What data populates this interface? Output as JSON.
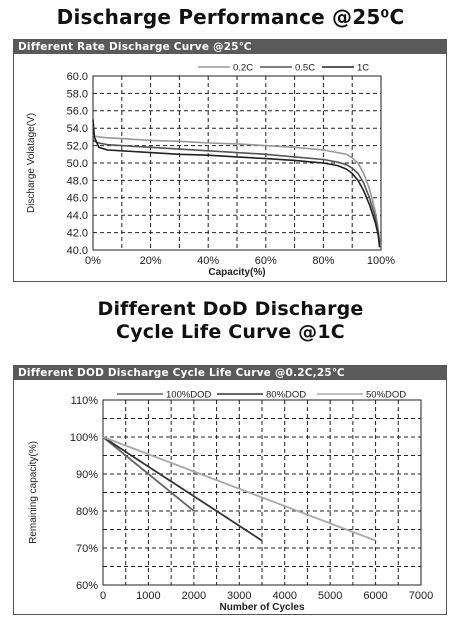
{
  "headings": {
    "top": "Discharge Performance @25⁰C",
    "bottom_line1": "Different DoD Discharge",
    "bottom_line2": "Cycle Life Curve @1C"
  },
  "chart_data": [
    {
      "type": "line",
      "title": "Different Rate Discharge Curve @25℃",
      "xlabel": "Capacity(%)",
      "ylabel": "Discharge Volatage(V)",
      "xlim": [
        0,
        100
      ],
      "ylim": [
        40,
        60
      ],
      "xticks": [
        "0%",
        "20%",
        "40%",
        "60%",
        "80%",
        "100%"
      ],
      "yticks": [
        "40.0",
        "42.0",
        "44.0",
        "46.0",
        "48.0",
        "50.0",
        "52.0",
        "54.0",
        "56.0",
        "58.0",
        "60.0"
      ],
      "grid": true,
      "legend_position": "top-right",
      "colors": {
        "line": "#3c3c3c"
      },
      "series": [
        {
          "name": "0.2C",
          "color": "#999999",
          "x": [
            0,
            0.5,
            2,
            5,
            10,
            20,
            30,
            40,
            50,
            60,
            70,
            80,
            85,
            88,
            90,
            92,
            94,
            96,
            98,
            99,
            99.8
          ],
          "y": [
            53.2,
            53.1,
            53.0,
            52.9,
            52.8,
            52.6,
            52.5,
            52.3,
            52.2,
            52.0,
            51.8,
            51.5,
            51.2,
            51.0,
            50.6,
            50.0,
            48.8,
            47.0,
            44.5,
            42.5,
            40.4
          ]
        },
        {
          "name": "0.5C",
          "color": "#555555",
          "x": [
            0,
            0.5,
            2,
            5,
            10,
            20,
            30,
            40,
            50,
            60,
            70,
            80,
            85,
            88,
            90,
            92,
            94,
            96,
            98,
            99,
            99.5
          ],
          "y": [
            52.8,
            52.5,
            52.3,
            52.1,
            52.0,
            51.8,
            51.6,
            51.4,
            51.2,
            51.0,
            50.7,
            50.4,
            50.1,
            49.8,
            49.4,
            48.8,
            47.7,
            46.0,
            43.8,
            42.0,
            40.6
          ]
        },
        {
          "name": "1C",
          "color": "#222222",
          "x": [
            0,
            0.5,
            2,
            5,
            10,
            20,
            30,
            40,
            50,
            60,
            70,
            80,
            85,
            88,
            90,
            92,
            94,
            96,
            98,
            99,
            99.5
          ],
          "y": [
            55.0,
            53.0,
            51.8,
            51.5,
            51.4,
            51.2,
            51.0,
            50.9,
            50.7,
            50.5,
            50.3,
            50.0,
            49.7,
            49.3,
            48.8,
            48.0,
            46.8,
            45.2,
            43.2,
            41.8,
            40.3
          ]
        }
      ]
    },
    {
      "type": "line",
      "title": "Different DOD Discharge Cycle Life Curve @0.2C,25℃",
      "xlabel": "Number of Cycles",
      "ylabel": "Remaining capacity(%)",
      "xlim": [
        0,
        7000
      ],
      "ylim": [
        60,
        110
      ],
      "xticks": [
        "0",
        "1000",
        "2000",
        "3000",
        "4000",
        "5000",
        "6000",
        "7000"
      ],
      "yticks": [
        "60%",
        "70%",
        "80%",
        "90%",
        "100%",
        "110%"
      ],
      "grid": true,
      "legend_position": "top",
      "series": [
        {
          "name": "100%DOD",
          "color": "#666666",
          "x": [
            0,
            2000
          ],
          "y": [
            100,
            80
          ]
        },
        {
          "name": "80%DOD",
          "color": "#333333",
          "x": [
            0,
            3500
          ],
          "y": [
            100,
            72
          ]
        },
        {
          "name": "50%DOD",
          "color": "#aaaaaa",
          "x": [
            0,
            6000
          ],
          "y": [
            100,
            72
          ]
        }
      ]
    }
  ]
}
